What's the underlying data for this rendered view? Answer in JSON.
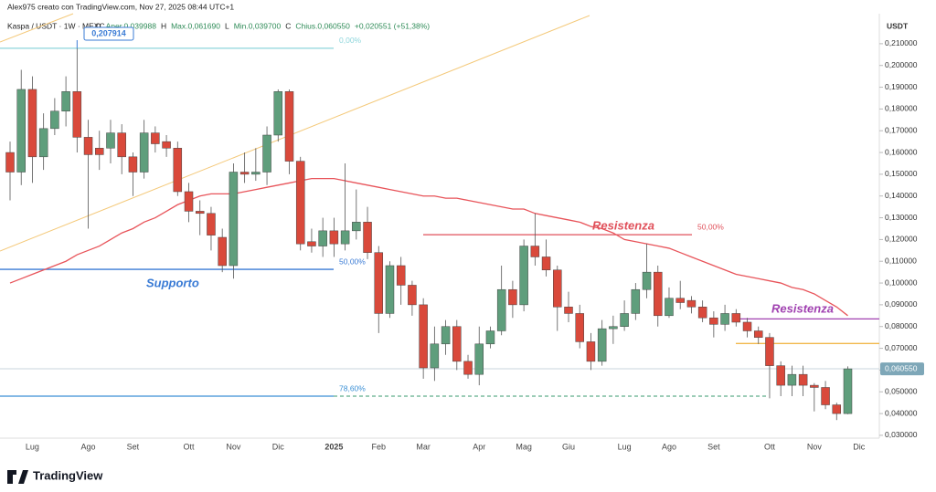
{
  "header": {
    "author_line": "Alex975 creato con TradingView.com, Nov 27, 2025 08:44 UTC+1",
    "symbol": "Kaspa / USDT · 1W · MEXC",
    "ohlc": [
      "O",
      "Aper.0,039988",
      "H",
      "Max.0,061690",
      "L",
      "Min.0,039700",
      "C",
      "Chius.0,060550",
      "+0,020551 (+51,38%)"
    ],
    "brand": "TradingView"
  },
  "chart_data": {
    "type": "candlestick",
    "y_axis_title": "USDT",
    "categories": [
      null,
      null,
      "Lug",
      null,
      null,
      null,
      null,
      "Ago",
      null,
      null,
      null,
      "Set",
      null,
      null,
      null,
      null,
      "Ott",
      null,
      null,
      null,
      "Nov",
      null,
      null,
      null,
      "Dic",
      null,
      null,
      null,
      null,
      "2025",
      null,
      null,
      null,
      "Feb",
      null,
      null,
      null,
      "Mar",
      null,
      null,
      null,
      null,
      "Apr",
      null,
      null,
      null,
      "Mag",
      null,
      null,
      null,
      "Giu",
      null,
      null,
      null,
      null,
      "Lug",
      null,
      null,
      null,
      "Ago",
      null,
      null,
      null,
      "Set",
      null,
      null,
      null,
      null,
      "Ott",
      null,
      null,
      null,
      "Nov",
      null,
      null,
      null,
      "Dic"
    ],
    "open": [
      0.16,
      0.151,
      0.189,
      0.158,
      0.171,
      0.179,
      0.188,
      0.167,
      0.162,
      0.162,
      0.169,
      0.158,
      0.151,
      0.169,
      0.165,
      0.162,
      0.142,
      0.133,
      0.132,
      0.121,
      0.108,
      0.151,
      0.15,
      0.151,
      0.168,
      0.188,
      0.156,
      0.119,
      0.117,
      0.124,
      0.118,
      0.124,
      0.128,
      0.114,
      0.086,
      0.108,
      0.099,
      0.09,
      0.061,
      0.072,
      0.08,
      0.064,
      0.058,
      0.072,
      0.078,
      0.097,
      0.09,
      0.117,
      0.112,
      0.106,
      0.089,
      0.086,
      0.073,
      0.064,
      0.079,
      0.08,
      0.086,
      0.097,
      0.105,
      0.085,
      0.093,
      0.092,
      0.089,
      0.084,
      0.081,
      0.086,
      0.082,
      0.078,
      0.075,
      0.062,
      0.053,
      0.058,
      0.053,
      0.052,
      0.044,
      0.039988,
      null
    ],
    "high": [
      0.165,
      0.198,
      0.195,
      0.178,
      0.185,
      0.195,
      0.207914,
      0.175,
      0.17,
      0.175,
      0.173,
      0.16,
      0.175,
      0.172,
      0.168,
      0.165,
      0.146,
      0.138,
      0.135,
      0.125,
      0.155,
      0.16,
      0.162,
      0.172,
      0.189,
      0.189,
      0.158,
      0.125,
      0.13,
      0.13,
      0.155,
      0.143,
      0.135,
      0.117,
      0.11,
      0.112,
      0.101,
      0.093,
      0.08,
      0.083,
      0.083,
      0.067,
      0.08,
      0.08,
      0.108,
      0.101,
      0.12,
      0.132,
      0.12,
      0.108,
      0.096,
      0.09,
      0.077,
      0.083,
      0.085,
      0.092,
      0.1,
      0.118,
      0.108,
      0.098,
      0.101,
      0.094,
      0.092,
      0.087,
      0.09,
      0.088,
      0.084,
      0.08,
      0.077,
      0.064,
      0.062,
      0.062,
      0.054,
      0.055,
      0.045,
      0.06169,
      null
    ],
    "low": [
      0.138,
      0.145,
      0.146,
      0.152,
      0.168,
      0.172,
      0.16,
      0.125,
      0.152,
      0.155,
      0.15,
      0.14,
      0.148,
      0.16,
      0.158,
      0.14,
      0.128,
      0.122,
      0.115,
      0.105,
      0.102,
      0.146,
      0.147,
      0.145,
      0.165,
      0.15,
      0.115,
      0.114,
      0.112,
      0.112,
      0.115,
      0.12,
      0.111,
      0.077,
      0.084,
      0.09,
      0.085,
      0.056,
      0.055,
      0.067,
      0.06,
      0.056,
      0.053,
      0.07,
      0.076,
      0.084,
      0.087,
      0.108,
      0.103,
      0.078,
      0.082,
      0.07,
      0.06,
      0.062,
      0.072,
      0.078,
      0.083,
      0.093,
      0.08,
      0.084,
      0.088,
      0.086,
      0.082,
      0.075,
      0.078,
      0.08,
      0.075,
      0.072,
      0.047,
      0.048,
      0.048,
      0.048,
      0.041,
      0.042,
      0.037,
      0.0397,
      null
    ],
    "close": [
      0.151,
      0.189,
      0.158,
      0.171,
      0.179,
      0.188,
      0.167,
      0.159,
      0.159,
      0.169,
      0.158,
      0.151,
      0.169,
      0.164,
      0.162,
      0.142,
      0.133,
      0.132,
      0.122,
      0.108,
      0.151,
      0.15,
      0.151,
      0.168,
      0.188,
      0.156,
      0.118,
      0.117,
      0.124,
      0.118,
      0.124,
      0.128,
      0.114,
      0.086,
      0.108,
      0.099,
      0.09,
      0.061,
      0.072,
      0.08,
      0.064,
      0.058,
      0.072,
      0.078,
      0.097,
      0.09,
      0.117,
      0.112,
      0.106,
      0.089,
      0.086,
      0.073,
      0.064,
      0.079,
      0.08,
      0.086,
      0.097,
      0.105,
      0.085,
      0.093,
      0.091,
      0.089,
      0.084,
      0.081,
      0.086,
      0.082,
      0.078,
      0.075,
      0.062,
      0.053,
      0.058,
      0.053,
      0.052,
      0.044,
      0.04,
      0.06055,
      null
    ],
    "up_color": "#5f9e7c",
    "down_color": "#d9493b",
    "ma": {
      "color": "#e8545a",
      "values": [
        0.1,
        0.102,
        0.104,
        0.106,
        0.108,
        0.11,
        0.113,
        0.115,
        0.117,
        0.12,
        0.123,
        0.125,
        0.128,
        0.13,
        0.133,
        0.136,
        0.138,
        0.14,
        0.141,
        0.141,
        0.141,
        0.142,
        0.143,
        0.144,
        0.145,
        0.146,
        0.147,
        0.148,
        0.148,
        0.148,
        0.147,
        0.146,
        0.145,
        0.144,
        0.143,
        0.142,
        0.141,
        0.14,
        0.14,
        0.139,
        0.139,
        0.138,
        0.137,
        0.136,
        0.135,
        0.134,
        0.134,
        0.132,
        0.131,
        0.13,
        0.129,
        0.128,
        0.126,
        0.125,
        0.123,
        0.12,
        0.119,
        0.118,
        0.117,
        0.116,
        0.114,
        0.112,
        0.11,
        0.108,
        0.106,
        0.104,
        0.103,
        0.102,
        0.101,
        0.1,
        0.098,
        0.097,
        0.095,
        0.092,
        0.089,
        0.085,
        null
      ]
    },
    "ylim": [
      0.0287,
      0.2238
    ],
    "yticks": [
      {
        "value": 0.21,
        "label": "0,210000"
      },
      {
        "value": 0.2,
        "label": "0,200000"
      },
      {
        "value": 0.19,
        "label": "0,190000"
      },
      {
        "value": 0.18,
        "label": "0,180000"
      },
      {
        "value": 0.17,
        "label": "0,170000"
      },
      {
        "value": 0.16,
        "label": "0,160000"
      },
      {
        "value": 0.15,
        "label": "0,150000"
      },
      {
        "value": 0.14,
        "label": "0,140000"
      },
      {
        "value": 0.13,
        "label": "0,130000"
      },
      {
        "value": 0.12,
        "label": "0,120000"
      },
      {
        "value": 0.11,
        "label": "0,110000"
      },
      {
        "value": 0.1,
        "label": "0,100000"
      },
      {
        "value": 0.09,
        "label": "0,090000"
      },
      {
        "value": 0.08,
        "label": "0,080000"
      },
      {
        "value": 0.07,
        "label": "0,070000"
      },
      {
        "value": 0.06,
        "label": "0,060000"
      },
      {
        "value": 0.05,
        "label": "0,050000"
      },
      {
        "value": 0.04,
        "label": "0,040000"
      },
      {
        "value": 0.03,
        "label": "0,030000"
      }
    ],
    "levels": [
      {
        "value": 0.2079,
        "label": "0,00%",
        "color": "#8ed6dc"
      },
      {
        "value": 0.1063,
        "label": "50,00%",
        "color": "#3a7bd5"
      },
      {
        "value": 0.1222,
        "label": "50,00%",
        "color": "#e0505a"
      },
      {
        "value": 0.048,
        "label": "78,60%",
        "color": "#3a8fd5"
      },
      {
        "value": 0.048,
        "color": "#5fae8a"
      },
      {
        "value": 0.0835,
        "color": "#a040b0"
      },
      {
        "value": 0.0722,
        "color": "#f2b84b"
      },
      {
        "value": 0.0606,
        "color": "#c9d6dc"
      }
    ],
    "high_callout": {
      "value": 0.207914,
      "label": "0,207914"
    },
    "last_price": {
      "value": 0.06055,
      "label": "0,060550"
    },
    "annotations": [
      {
        "text": "Supporto",
        "color": "#3a7bd5"
      },
      {
        "text": "Resistenza",
        "color": "#e0505a"
      },
      {
        "text": "Resistenza",
        "color": "#a040b0"
      }
    ]
  }
}
